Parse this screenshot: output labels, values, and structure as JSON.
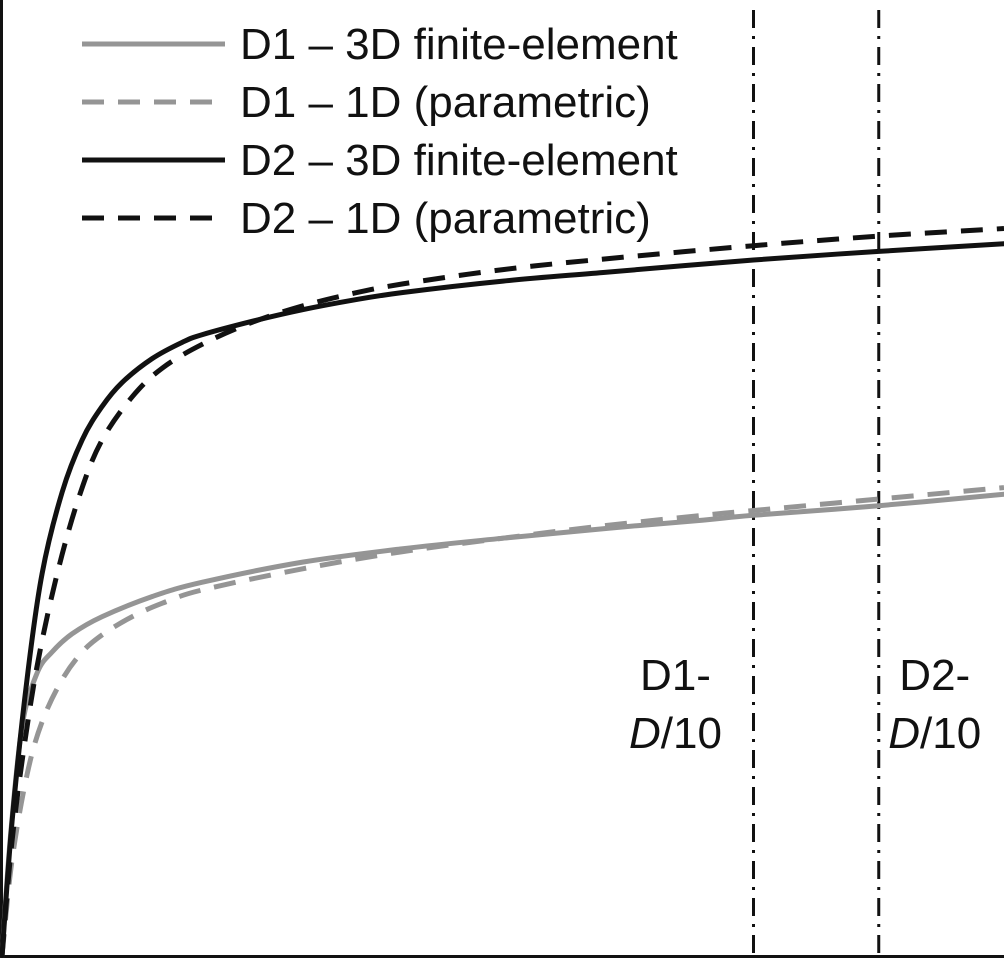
{
  "chart_data": {
    "type": "line",
    "title": "",
    "xlabel": "",
    "ylabel": "",
    "xlim": [
      0,
      1
    ],
    "ylim": [
      0,
      1
    ],
    "grid": false,
    "legend_position": "top-left",
    "series": [
      {
        "name": "D1 – 3D finite-element",
        "color": "#959595",
        "dash": "solid",
        "x": [
          0,
          0.008,
          0.02,
          0.035,
          0.05,
          0.07,
          0.1,
          0.15,
          0.2,
          0.3,
          0.4,
          0.5,
          0.6,
          0.7,
          0.75,
          0.875,
          1.0
        ],
        "y": [
          0,
          0.12,
          0.24,
          0.296,
          0.318,
          0.337,
          0.355,
          0.376,
          0.391,
          0.412,
          0.426,
          0.437,
          0.447,
          0.456,
          0.461,
          0.471,
          0.483
        ]
      },
      {
        "name": "D1 – 1D (parametric)",
        "color": "#959595",
        "dash": "dashed",
        "x": [
          0,
          0.01,
          0.025,
          0.04,
          0.06,
          0.08,
          0.1,
          0.13,
          0.16,
          0.2,
          0.3,
          0.4,
          0.5,
          0.6,
          0.7,
          0.75,
          0.875,
          1.0
        ],
        "y": [
          0,
          0.1,
          0.19,
          0.245,
          0.289,
          0.318,
          0.336,
          0.355,
          0.369,
          0.383,
          0.405,
          0.423,
          0.437,
          0.45,
          0.461,
          0.466,
          0.478,
          0.49
        ]
      },
      {
        "name": "D2 – 3D finite-element",
        "color": "#111111",
        "dash": "solid",
        "x": [
          0,
          0.01,
          0.025,
          0.04,
          0.06,
          0.08,
          0.1,
          0.12,
          0.15,
          0.18,
          0.2,
          0.25,
          0.3,
          0.35,
          0.4,
          0.5,
          0.6,
          0.75,
          0.875,
          1.0
        ],
        "y": [
          0,
          0.14,
          0.29,
          0.4,
          0.485,
          0.54,
          0.575,
          0.6,
          0.625,
          0.642,
          0.65,
          0.664,
          0.676,
          0.686,
          0.694,
          0.706,
          0.715,
          0.728,
          0.737,
          0.745
        ]
      },
      {
        "name": "D2 – 1D (parametric)",
        "color": "#111111",
        "dash": "dashed",
        "x": [
          0,
          0.01,
          0.025,
          0.04,
          0.06,
          0.08,
          0.1,
          0.13,
          0.16,
          0.2,
          0.25,
          0.3,
          0.35,
          0.4,
          0.5,
          0.6,
          0.75,
          0.875,
          1.0
        ],
        "y": [
          0,
          0.12,
          0.24,
          0.33,
          0.42,
          0.49,
          0.54,
          0.585,
          0.615,
          0.64,
          0.663,
          0.68,
          0.693,
          0.703,
          0.718,
          0.729,
          0.743,
          0.753,
          0.761
        ]
      }
    ],
    "vlines": [
      {
        "x": 0.75,
        "label_line1": "D1-",
        "label_italic": "D",
        "label_rest": "/10",
        "label_side": "left"
      },
      {
        "x": 0.875,
        "label_line1": "D2-",
        "label_italic": "D",
        "label_rest": "/10",
        "label_side": "right"
      }
    ]
  }
}
